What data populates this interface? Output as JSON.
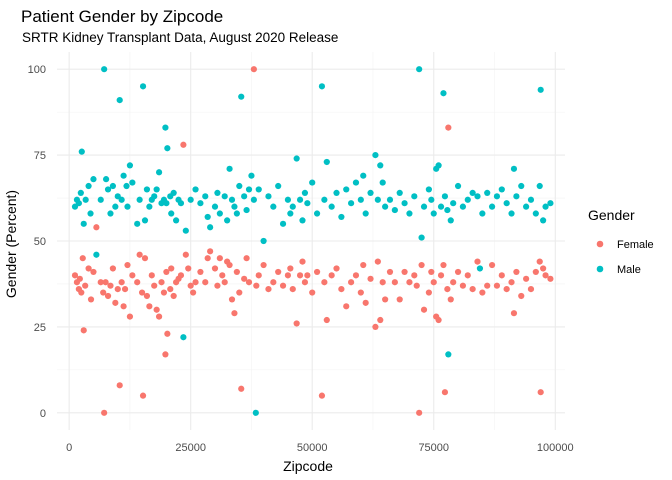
{
  "chart_data": {
    "type": "scatter",
    "title": "Patient Gender by Zipcode",
    "subtitle": "SRTR Kidney Transplant Data, August 2020 Release",
    "xlabel": "Zipcode",
    "ylabel": "Gender (Percent)",
    "xlim": [
      -2500,
      102000
    ],
    "ylim": [
      -5,
      105
    ],
    "x_ticks": [
      0,
      25000,
      50000,
      75000,
      100000
    ],
    "x_tick_labels": [
      "0",
      "25000",
      "50000",
      "75000",
      "100000"
    ],
    "y_ticks": [
      0,
      25,
      50,
      75,
      100
    ],
    "y_tick_labels": [
      "0",
      "25",
      "50",
      "75",
      "100"
    ],
    "grid": true,
    "legend_position": "right",
    "legend_title": "Gender",
    "series": [
      {
        "name": "Female",
        "color": "#F8766D",
        "points": [
          [
            1200,
            40
          ],
          [
            1600,
            38
          ],
          [
            2000,
            36
          ],
          [
            2200,
            39
          ],
          [
            2500,
            35
          ],
          [
            2800,
            45
          ],
          [
            3000,
            24
          ],
          [
            3300,
            37
          ],
          [
            4000,
            42
          ],
          [
            4500,
            33
          ],
          [
            5000,
            41
          ],
          [
            5600,
            54
          ],
          [
            6500,
            38
          ],
          [
            7000,
            35
          ],
          [
            7200,
            0
          ],
          [
            7500,
            38
          ],
          [
            8000,
            34
          ],
          [
            8500,
            37
          ],
          [
            9000,
            42
          ],
          [
            9500,
            32
          ],
          [
            10000,
            36
          ],
          [
            10400,
            8
          ],
          [
            10800,
            38
          ],
          [
            11200,
            31
          ],
          [
            11500,
            36
          ],
          [
            12000,
            43
          ],
          [
            12500,
            28
          ],
          [
            13000,
            40
          ],
          [
            14000,
            38
          ],
          [
            14500,
            46
          ],
          [
            15000,
            35
          ],
          [
            15200,
            5
          ],
          [
            15600,
            45
          ],
          [
            16000,
            34
          ],
          [
            16500,
            31
          ],
          [
            17000,
            40
          ],
          [
            17500,
            37
          ],
          [
            18000,
            30
          ],
          [
            18500,
            28
          ],
          [
            19000,
            38
          ],
          [
            19500,
            35
          ],
          [
            19800,
            17
          ],
          [
            20000,
            41
          ],
          [
            20200,
            23
          ],
          [
            20800,
            36
          ],
          [
            21000,
            42
          ],
          [
            21500,
            34
          ],
          [
            22000,
            38
          ],
          [
            22500,
            39
          ],
          [
            23000,
            40
          ],
          [
            23500,
            78
          ],
          [
            24000,
            46
          ],
          [
            24500,
            42
          ],
          [
            25000,
            37
          ],
          [
            25500,
            35
          ],
          [
            26000,
            38
          ],
          [
            27000,
            41
          ],
          [
            28000,
            38
          ],
          [
            28500,
            45
          ],
          [
            29000,
            47
          ],
          [
            30000,
            42
          ],
          [
            30500,
            37
          ],
          [
            31000,
            45
          ],
          [
            31500,
            40
          ],
          [
            32000,
            38
          ],
          [
            32500,
            44
          ],
          [
            33000,
            43
          ],
          [
            33500,
            33
          ],
          [
            34000,
            29
          ],
          [
            34500,
            41
          ],
          [
            35000,
            35
          ],
          [
            35400,
            7
          ],
          [
            36000,
            39
          ],
          [
            36500,
            45
          ],
          [
            37000,
            38
          ],
          [
            38000,
            100
          ],
          [
            38500,
            37
          ],
          [
            39000,
            40
          ],
          [
            40000,
            43
          ],
          [
            41000,
            36
          ],
          [
            42000,
            38
          ],
          [
            43000,
            41
          ],
          [
            44000,
            37
          ],
          [
            45000,
            40
          ],
          [
            45500,
            42
          ],
          [
            46000,
            36
          ],
          [
            46800,
            26
          ],
          [
            47500,
            40
          ],
          [
            48000,
            44
          ],
          [
            48500,
            38
          ],
          [
            49000,
            40
          ],
          [
            50000,
            35
          ],
          [
            51000,
            41
          ],
          [
            52000,
            5
          ],
          [
            52500,
            38
          ],
          [
            53000,
            27
          ],
          [
            54000,
            40
          ],
          [
            55000,
            42
          ],
          [
            56000,
            36
          ],
          [
            57000,
            31
          ],
          [
            58000,
            38
          ],
          [
            59000,
            40
          ],
          [
            60000,
            35
          ],
          [
            60500,
            43
          ],
          [
            61000,
            32
          ],
          [
            62000,
            39
          ],
          [
            63000,
            25
          ],
          [
            63500,
            44
          ],
          [
            64000,
            27
          ],
          [
            64500,
            38
          ],
          [
            65000,
            33
          ],
          [
            66000,
            41
          ],
          [
            67000,
            38
          ],
          [
            68000,
            33
          ],
          [
            69000,
            41
          ],
          [
            70000,
            38
          ],
          [
            71000,
            40
          ],
          [
            71500,
            37
          ],
          [
            72000,
            0
          ],
          [
            72500,
            43
          ],
          [
            73000,
            30
          ],
          [
            74000,
            35
          ],
          [
            74500,
            41
          ],
          [
            75000,
            38
          ],
          [
            75500,
            28
          ],
          [
            76000,
            27
          ],
          [
            76500,
            40
          ],
          [
            77000,
            43
          ],
          [
            77300,
            6
          ],
          [
            77800,
            36
          ],
          [
            78000,
            83
          ],
          [
            78500,
            33
          ],
          [
            79000,
            38
          ],
          [
            80000,
            41
          ],
          [
            81000,
            37
          ],
          [
            82000,
            40
          ],
          [
            83000,
            36
          ],
          [
            84000,
            44
          ],
          [
            85000,
            35
          ],
          [
            86000,
            37
          ],
          [
            87000,
            43
          ],
          [
            88000,
            37
          ],
          [
            89000,
            40
          ],
          [
            90000,
            36
          ],
          [
            91000,
            38
          ],
          [
            91500,
            29
          ],
          [
            92000,
            41
          ],
          [
            93000,
            34
          ],
          [
            94000,
            39
          ],
          [
            95000,
            36
          ],
          [
            96000,
            41
          ],
          [
            96800,
            44
          ],
          [
            97000,
            6
          ],
          [
            97500,
            42
          ],
          [
            98000,
            40
          ],
          [
            99000,
            39
          ]
        ]
      },
      {
        "name": "Male",
        "color": "#00BFC4",
        "points": [
          [
            1200,
            60
          ],
          [
            1600,
            62
          ],
          [
            2000,
            61
          ],
          [
            2400,
            64
          ],
          [
            2600,
            76
          ],
          [
            3000,
            55
          ],
          [
            3400,
            62
          ],
          [
            4000,
            66
          ],
          [
            4400,
            58
          ],
          [
            5000,
            68
          ],
          [
            5600,
            46
          ],
          [
            6500,
            62
          ],
          [
            7200,
            100
          ],
          [
            7600,
            68
          ],
          [
            8000,
            65
          ],
          [
            8500,
            58
          ],
          [
            9000,
            66
          ],
          [
            9500,
            60
          ],
          [
            10000,
            63
          ],
          [
            10400,
            91
          ],
          [
            10800,
            62
          ],
          [
            11200,
            69
          ],
          [
            11800,
            66
          ],
          [
            12000,
            60
          ],
          [
            12500,
            72
          ],
          [
            13000,
            67
          ],
          [
            14000,
            55
          ],
          [
            14500,
            62
          ],
          [
            15200,
            95
          ],
          [
            15600,
            56
          ],
          [
            16000,
            65
          ],
          [
            16500,
            60
          ],
          [
            17000,
            62
          ],
          [
            17500,
            63
          ],
          [
            18000,
            65
          ],
          [
            18500,
            70
          ],
          [
            19000,
            61
          ],
          [
            19500,
            62
          ],
          [
            19800,
            83
          ],
          [
            20000,
            61
          ],
          [
            20200,
            77
          ],
          [
            20800,
            63
          ],
          [
            21000,
            58
          ],
          [
            21500,
            64
          ],
          [
            22000,
            56
          ],
          [
            22500,
            62
          ],
          [
            23000,
            61
          ],
          [
            23500,
            22
          ],
          [
            24000,
            53
          ],
          [
            25000,
            62
          ],
          [
            26000,
            65
          ],
          [
            27000,
            61
          ],
          [
            28000,
            63
          ],
          [
            28500,
            57
          ],
          [
            29000,
            54
          ],
          [
            30000,
            60
          ],
          [
            30500,
            64
          ],
          [
            31000,
            58
          ],
          [
            32000,
            63
          ],
          [
            32500,
            56
          ],
          [
            33000,
            71
          ],
          [
            33500,
            62
          ],
          [
            34000,
            60
          ],
          [
            34500,
            58
          ],
          [
            35000,
            66
          ],
          [
            35400,
            92
          ],
          [
            36000,
            63
          ],
          [
            36500,
            59
          ],
          [
            37000,
            65
          ],
          [
            37500,
            69
          ],
          [
            38000,
            62
          ],
          [
            38400,
            0
          ],
          [
            39000,
            65
          ],
          [
            40000,
            50
          ],
          [
            41000,
            63
          ],
          [
            42000,
            60
          ],
          [
            43000,
            66
          ],
          [
            44000,
            55
          ],
          [
            45000,
            62
          ],
          [
            45500,
            58
          ],
          [
            46000,
            60
          ],
          [
            46800,
            74
          ],
          [
            47500,
            62
          ],
          [
            48000,
            56
          ],
          [
            48500,
            64
          ],
          [
            49000,
            61
          ],
          [
            50000,
            67
          ],
          [
            51000,
            58
          ],
          [
            52000,
            95
          ],
          [
            52500,
            62
          ],
          [
            53000,
            73
          ],
          [
            54000,
            60
          ],
          [
            55000,
            64
          ],
          [
            56000,
            57
          ],
          [
            57000,
            65
          ],
          [
            58000,
            61
          ],
          [
            59000,
            67
          ],
          [
            60000,
            62
          ],
          [
            60500,
            69
          ],
          [
            61000,
            58
          ],
          [
            62000,
            64
          ],
          [
            63000,
            75
          ],
          [
            63500,
            62
          ],
          [
            64000,
            72
          ],
          [
            64500,
            67
          ],
          [
            65000,
            60
          ],
          [
            66000,
            62
          ],
          [
            67000,
            59
          ],
          [
            68000,
            64
          ],
          [
            69000,
            61
          ],
          [
            70000,
            58
          ],
          [
            71000,
            63
          ],
          [
            72000,
            100
          ],
          [
            72500,
            51
          ],
          [
            73000,
            60
          ],
          [
            74000,
            65
          ],
          [
            74500,
            62
          ],
          [
            75000,
            58
          ],
          [
            75500,
            71
          ],
          [
            76000,
            72
          ],
          [
            76500,
            60
          ],
          [
            77000,
            93
          ],
          [
            77300,
            63
          ],
          [
            77800,
            59
          ],
          [
            78000,
            17
          ],
          [
            78500,
            56
          ],
          [
            79000,
            61
          ],
          [
            80000,
            66
          ],
          [
            81000,
            60
          ],
          [
            82000,
            62
          ],
          [
            83000,
            64
          ],
          [
            84000,
            63
          ],
          [
            84500,
            42
          ],
          [
            85000,
            58
          ],
          [
            86000,
            64
          ],
          [
            87000,
            60
          ],
          [
            88000,
            63
          ],
          [
            89000,
            65
          ],
          [
            90000,
            61
          ],
          [
            91000,
            58
          ],
          [
            91500,
            71
          ],
          [
            92000,
            63
          ],
          [
            93000,
            66
          ],
          [
            94000,
            60
          ],
          [
            95000,
            62
          ],
          [
            96000,
            58
          ],
          [
            96800,
            66
          ],
          [
            97000,
            94
          ],
          [
            97500,
            56
          ],
          [
            98000,
            60
          ],
          [
            99000,
            61
          ]
        ]
      }
    ]
  }
}
